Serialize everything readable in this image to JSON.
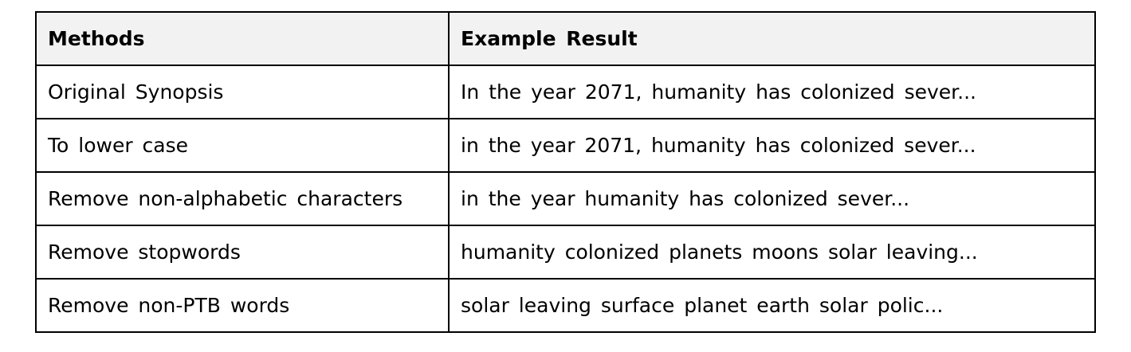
{
  "table": {
    "headers": [
      "Methods",
      "Example  Result"
    ],
    "rows": [
      [
        "Original  Synopsis",
        "In the  year  2071,  humanity  has  colonized  sever..."
      ],
      [
        "To  lower  case",
        "in  the  year  2071,  humanity  has  colonized  sever..."
      ],
      [
        "Remove  non-alphabetic  characters",
        "in  the  year  humanity  has  colonized  sever..."
      ],
      [
        "Remove  stopwords",
        "humanity  colonized  planets  moons  solar  leaving..."
      ],
      [
        "Remove  non-PTB  words",
        "solar  leaving  surface  planet  earth  solar  polic..."
      ]
    ]
  }
}
